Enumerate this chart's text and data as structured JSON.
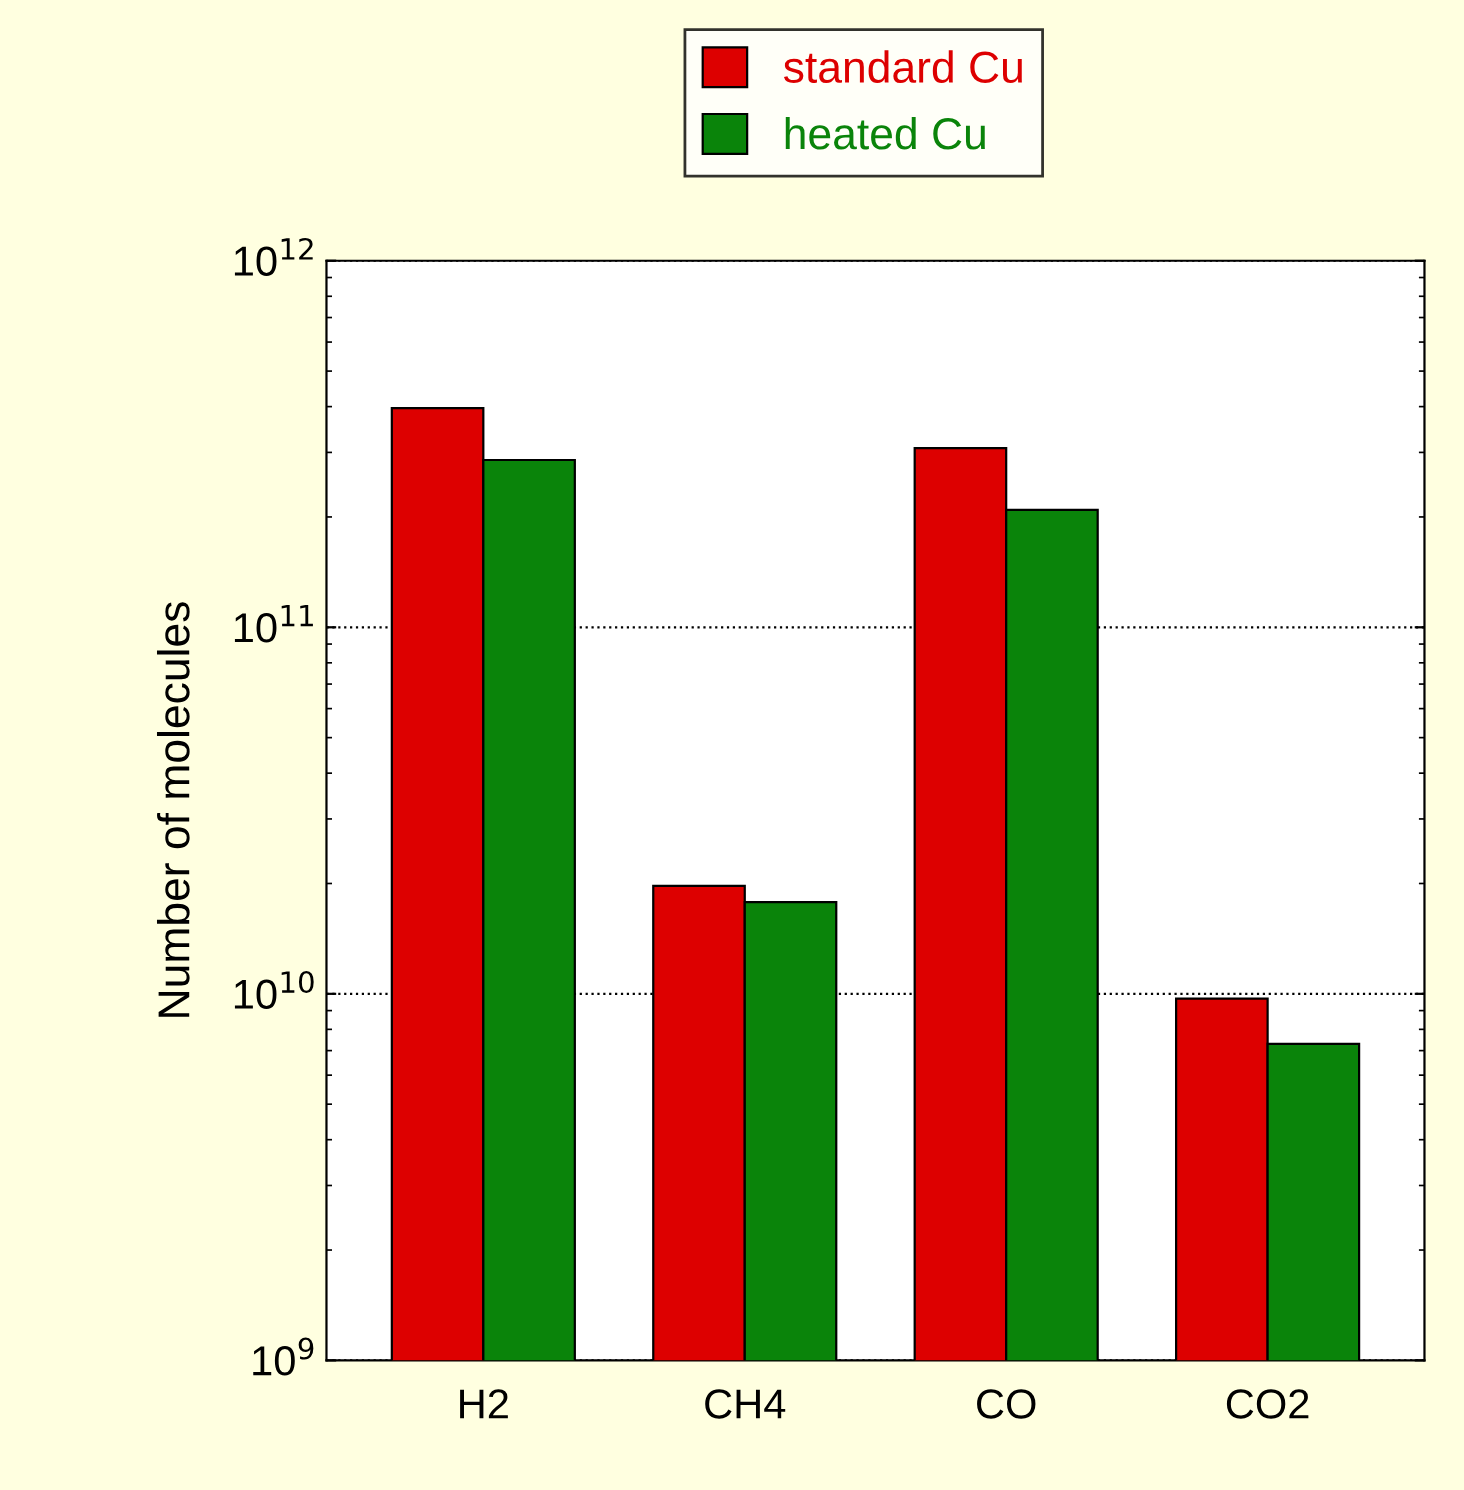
{
  "chart_data": {
    "type": "bar",
    "ylabel": "Number of molecules",
    "categories": [
      "H2",
      "CH4",
      "CO",
      "CO2"
    ],
    "series": [
      {
        "name": "standard Cu",
        "color": "#dd0000",
        "values": [
          396000000000.0,
          19700000000.0,
          308000000000.0,
          9700000000.0
        ]
      },
      {
        "name": "heated Cu",
        "color": "#0a840a",
        "values": [
          286000000000.0,
          17800000000.0,
          209000000000.0,
          7300000000.0
        ]
      }
    ],
    "log": "y",
    "ylim": [
      1000000000.0,
      1000000000000.0
    ],
    "yticks": [
      {
        "value": 1000000000.0,
        "label": "10$^{9}$"
      },
      {
        "value": 10000000000.0,
        "label": "10$^{10}$"
      },
      {
        "value": 100000000000.0,
        "label": "10$^{11}$"
      },
      {
        "value": 1000000000000.0,
        "label": "10$^{12}$"
      }
    ],
    "grid": "y",
    "legend": "top"
  }
}
